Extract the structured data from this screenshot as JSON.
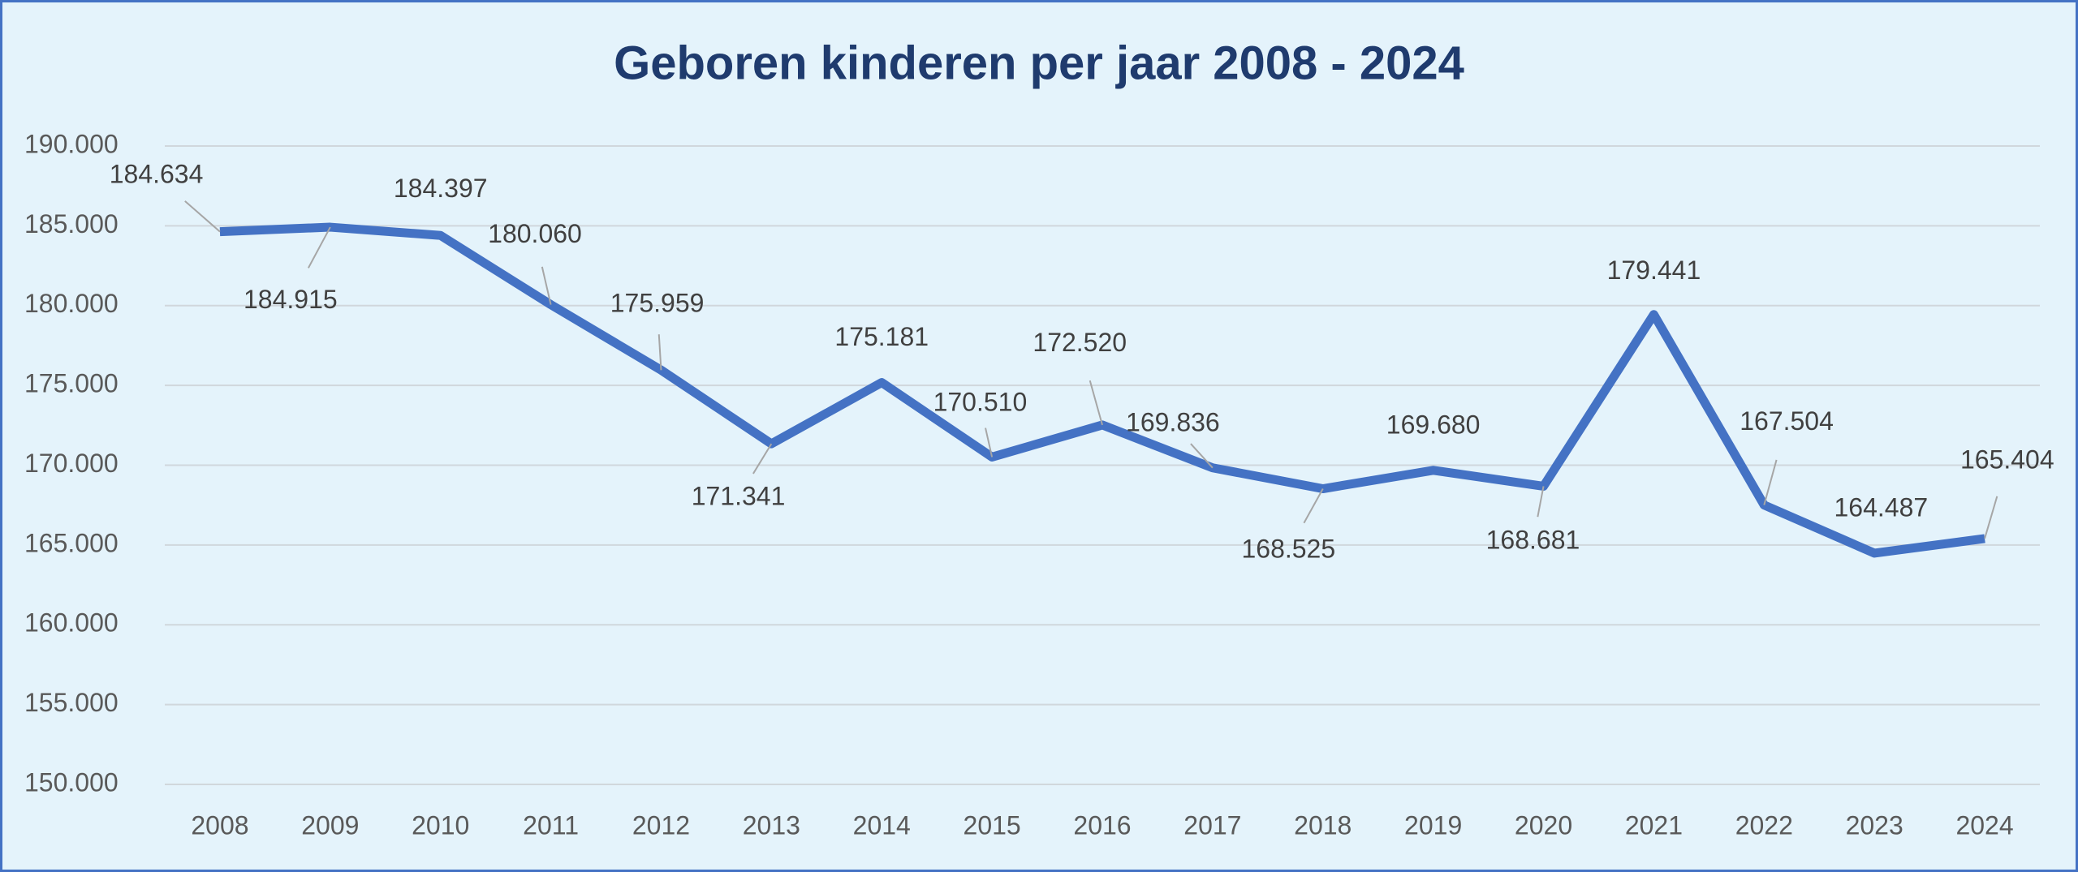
{
  "chart_data": {
    "type": "line",
    "title": "Geboren kinderen per jaar 2008 - 2024",
    "categories": [
      "2008",
      "2009",
      "2010",
      "2011",
      "2012",
      "2013",
      "2014",
      "2015",
      "2016",
      "2017",
      "2018",
      "2019",
      "2020",
      "2021",
      "2022",
      "2023",
      "2024"
    ],
    "series": [
      {
        "name": "Geboren kinderen",
        "color": "#4472c4",
        "values": [
          184634,
          184915,
          184397,
          180060,
          175959,
          171341,
          175181,
          170510,
          172520,
          169836,
          168525,
          169680,
          168681,
          179441,
          167504,
          164487,
          165404
        ],
        "value_labels": [
          "184.634",
          "184.915",
          "184.397",
          "180.060",
          "175.959",
          "171.341",
          "175.181",
          "170.510",
          "172.520",
          "169.836",
          "168.525",
          "169.680",
          "168.681",
          "179.441",
          "167.504",
          "164.487",
          "165.404"
        ]
      }
    ],
    "ylim": [
      150000,
      190000
    ],
    "yticks": [
      {
        "value": 150000,
        "label": "150.000"
      },
      {
        "value": 155000,
        "label": "155.000"
      },
      {
        "value": 160000,
        "label": "160.000"
      },
      {
        "value": 165000,
        "label": "165.000"
      },
      {
        "value": 170000,
        "label": "170.000"
      },
      {
        "value": 175000,
        "label": "175.000"
      },
      {
        "value": 180000,
        "label": "180.000"
      },
      {
        "value": 185000,
        "label": "185.000"
      },
      {
        "value": 190000,
        "label": "190.000"
      }
    ],
    "grid": true
  }
}
